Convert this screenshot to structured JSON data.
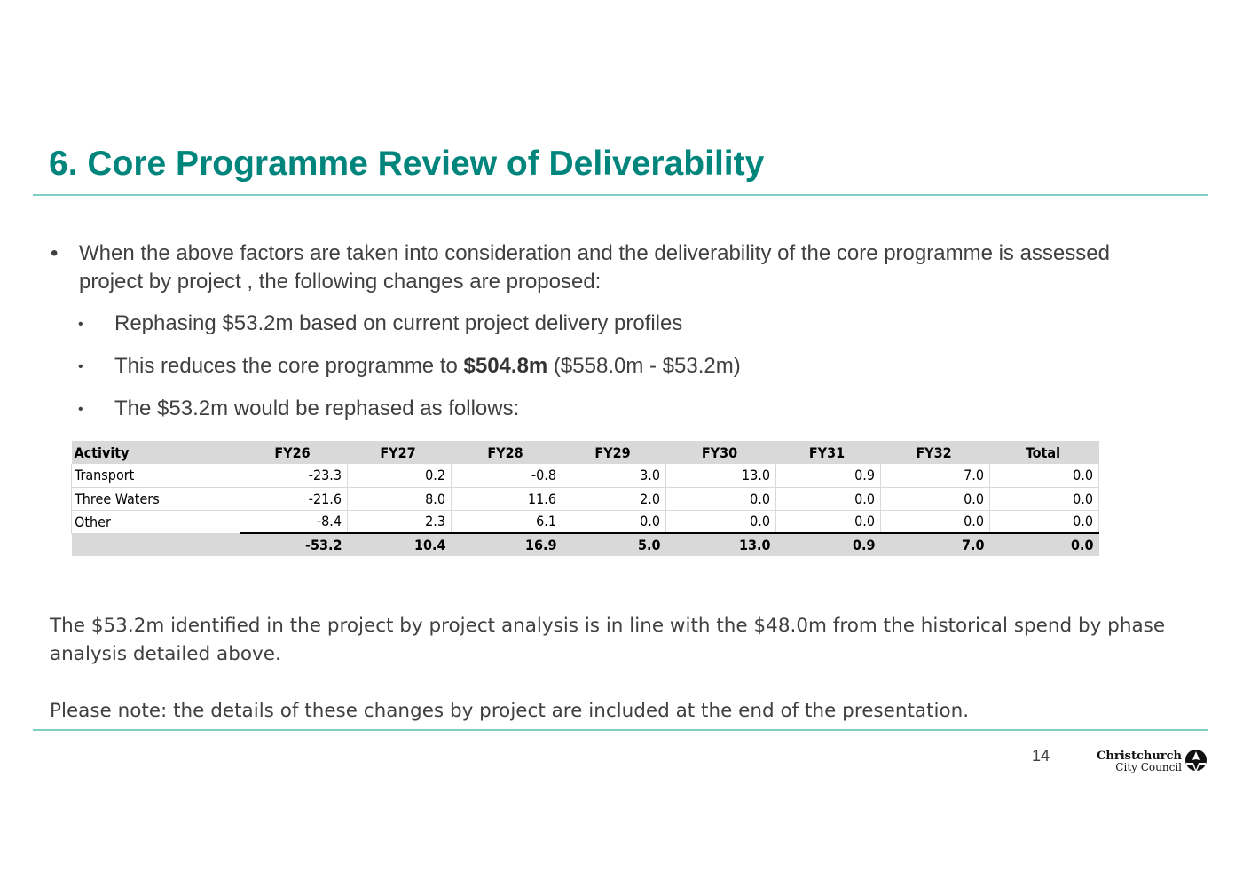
{
  "slide": {
    "title": "6. Core Programme Review of Deliverability",
    "page_number": "14"
  },
  "bullets": {
    "main": "When the above factors are taken into consideration and the deliverability of the core programme is assessed project by project , the following changes are proposed:",
    "sub1": "Rephasing $53.2m based on current project delivery profiles",
    "sub2_before": "This reduces the core programme to ",
    "sub2_bold": "$504.8m",
    "sub2_after": " ($558.0m - $53.2m)",
    "sub3": "The $53.2m would be rephased as follows:"
  },
  "table": {
    "headers": [
      "Activity",
      "FY26",
      "FY27",
      "FY28",
      "FY29",
      "FY30",
      "FY31",
      "FY32",
      "Total"
    ],
    "rows": [
      [
        "Transport",
        "-23.3",
        "0.2",
        "-0.8",
        "3.0",
        "13.0",
        "0.9",
        "7.0",
        "0.0"
      ],
      [
        "Three Waters",
        "-21.6",
        "8.0",
        "11.6",
        "2.0",
        "0.0",
        "0.0",
        "0.0",
        "0.0"
      ],
      [
        "Other",
        "-8.4",
        "2.3",
        "6.1",
        "0.0",
        "0.0",
        "0.0",
        "0.0",
        "0.0"
      ]
    ],
    "totals": [
      "",
      "-53.2",
      "10.4",
      "16.9",
      "5.0",
      "13.0",
      "0.9",
      "7.0",
      "0.0"
    ]
  },
  "notes": {
    "analysis": "The $53.2m identified in the project by project analysis is in line with the $48.0m from the historical spend by phase analysis detailed above.",
    "please_note": "Please note: the details of these changes by project are included at the end of the presentation."
  },
  "logo": {
    "line1": "Christchurch",
    "line2": "City Council",
    "icon": "cathedral-spire-icon"
  },
  "colors": {
    "title": "#00857c",
    "rule": "#7fcfc6",
    "table_header_bg": "#d9d9d9"
  }
}
